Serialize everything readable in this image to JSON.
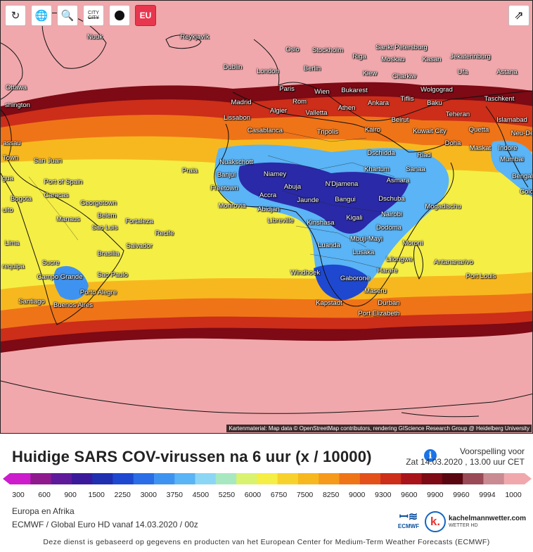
{
  "toolbar": {
    "refresh_icon": "refresh-icon",
    "globe_icon": "globe-icon",
    "zoom_icon": "zoom-icon",
    "city_label_top": "CITY",
    "city_label_bottom": "CITY",
    "pin_icon": "pin-icon",
    "eu_label": "EU",
    "share_icon": "share-icon"
  },
  "map": {
    "attribution": "Kartenmaterial: Map data © OpenStreetMap contributors, rendering GIScience Research Group @ Heidelberg University",
    "cities": [
      {
        "name": "Nuuk"
      },
      {
        "name": "Reykjavík"
      },
      {
        "name": "Oslo"
      },
      {
        "name": "Stockholm"
      },
      {
        "name": "Sankt Petersburg"
      },
      {
        "name": "Riga"
      },
      {
        "name": "Moskau"
      },
      {
        "name": "Kasan"
      },
      {
        "name": "Jekaterinburg"
      },
      {
        "name": "Dublin"
      },
      {
        "name": "London"
      },
      {
        "name": "Berlin"
      },
      {
        "name": "Kiew"
      },
      {
        "name": "Charkiw"
      },
      {
        "name": "Ufa"
      },
      {
        "name": "Astana"
      },
      {
        "name": "Ottawa"
      },
      {
        "name": "Paris"
      },
      {
        "name": "Wien"
      },
      {
        "name": "Bukarest"
      },
      {
        "name": "Wolgograd"
      },
      {
        "name": "Taschkent"
      },
      {
        "name": "Madrid"
      },
      {
        "name": "Rom"
      },
      {
        "name": "Athen"
      },
      {
        "name": "Ankara"
      },
      {
        "name": "Tiflis"
      },
      {
        "name": "Baku"
      },
      {
        "name": "shington"
      },
      {
        "name": "Lissabon"
      },
      {
        "name": "Algier"
      },
      {
        "name": "Valletta"
      },
      {
        "name": "Beirut"
      },
      {
        "name": "Teheran"
      },
      {
        "name": "Islamabad"
      },
      {
        "name": "Casablanca"
      },
      {
        "name": "Tripolis"
      },
      {
        "name": "Kairo"
      },
      {
        "name": "Kuwait City"
      },
      {
        "name": "Quetta"
      },
      {
        "name": "Neu-De"
      },
      {
        "name": "assau"
      },
      {
        "name": "Doha"
      },
      {
        "name": "Maskat"
      },
      {
        "name": "Indore"
      },
      {
        "name": "Dschidda"
      },
      {
        "name": "Riad"
      },
      {
        "name": "Mumbai"
      },
      {
        "name": "Town"
      },
      {
        "name": "San Juan"
      },
      {
        "name": "Nuakschott"
      },
      {
        "name": "Praia"
      },
      {
        "name": "Banjul"
      },
      {
        "name": "Niamey"
      },
      {
        "name": "Khartum"
      },
      {
        "name": "Sanaa"
      },
      {
        "name": "Bengal"
      },
      {
        "name": "gua"
      },
      {
        "name": "Port of Spain"
      },
      {
        "name": "Freetown"
      },
      {
        "name": "Abuja"
      },
      {
        "name": "N'Djamena"
      },
      {
        "name": "Asmara"
      },
      {
        "name": "Colo"
      },
      {
        "name": "Caracas"
      },
      {
        "name": "Accra"
      },
      {
        "name": "Jaunde"
      },
      {
        "name": "Bangui"
      },
      {
        "name": "Dschuba"
      },
      {
        "name": "Bogota"
      },
      {
        "name": "Georgetown"
      },
      {
        "name": "Monrovia"
      },
      {
        "name": "Abidjan"
      },
      {
        "name": "Mogadischu"
      },
      {
        "name": "uito"
      },
      {
        "name": "Belem"
      },
      {
        "name": "Nairobi"
      },
      {
        "name": "Manaus"
      },
      {
        "name": "Fortaleza"
      },
      {
        "name": "Libreville"
      },
      {
        "name": "Kigali"
      },
      {
        "name": "Sao Luis"
      },
      {
        "name": "Recife"
      },
      {
        "name": "Kinshasa"
      },
      {
        "name": "Dodoma"
      },
      {
        "name": "Lima"
      },
      {
        "name": "Salvador"
      },
      {
        "name": "Mbuji-Mayi"
      },
      {
        "name": "Luanda"
      },
      {
        "name": "Moroni"
      },
      {
        "name": "Brasilia"
      },
      {
        "name": "Lusaka"
      },
      {
        "name": "Sucre"
      },
      {
        "name": "Lilongwe"
      },
      {
        "name": "Antananarivo"
      },
      {
        "name": "requipa"
      },
      {
        "name": "Windhoek"
      },
      {
        "name": "Harare"
      },
      {
        "name": "Campo Grande"
      },
      {
        "name": "Sao Paulo"
      },
      {
        "name": "Gaborone"
      },
      {
        "name": "Port Louis"
      },
      {
        "name": "Porto Alegre"
      },
      {
        "name": "Maseru"
      },
      {
        "name": "Santiago"
      },
      {
        "name": "Buenos Aires"
      },
      {
        "name": "Kapstadt"
      },
      {
        "name": "Durban"
      },
      {
        "name": "Port Elizabeth"
      }
    ]
  },
  "title": "Huidige SARS COV-virussen na 6 uur (x / 10000)",
  "forecast": {
    "label": "Voorspelling voor",
    "datetime": "Zat 14.03.2020 , 13.00 uur CET"
  },
  "legend": {
    "ticks": [
      "300",
      "600",
      "900",
      "1500",
      "2250",
      "3000",
      "3750",
      "4500",
      "5250",
      "6000",
      "6750",
      "7500",
      "8250",
      "9000",
      "9300",
      "9600",
      "9900",
      "9960",
      "9994",
      "1000"
    ],
    "colors": [
      "#cc1ccc",
      "#8e1a8e",
      "#5e1a9a",
      "#3a1a9a",
      "#1f2fb0",
      "#1f48d0",
      "#2a6de6",
      "#3f93f0",
      "#5ab4f5",
      "#8cd6f5",
      "#a8e8c0",
      "#d9f270",
      "#f5ee45",
      "#f7d22c",
      "#f7b81f",
      "#f59a1a",
      "#ef7418",
      "#e3501a",
      "#cc2e1a",
      "#a8141a",
      "#7d0a14",
      "#5a0610",
      "#9a4a56",
      "#c98a92",
      "#f0a8ac"
    ]
  },
  "info": {
    "region": "Europa en Afrika",
    "model": "ECMWF / Global Euro HD vanaf 14.03.2020 / 00z"
  },
  "logos": {
    "ecmwf": "ECMWF",
    "kachel_text": "kachelmannwetter.com",
    "kachel_sub": "WETTER HD",
    "kachel_letter": "k."
  },
  "footer": "Deze dienst is gebaseerd op gegevens en producten van het European Center for Medium-Term Weather Forecasts (ECMWF)"
}
